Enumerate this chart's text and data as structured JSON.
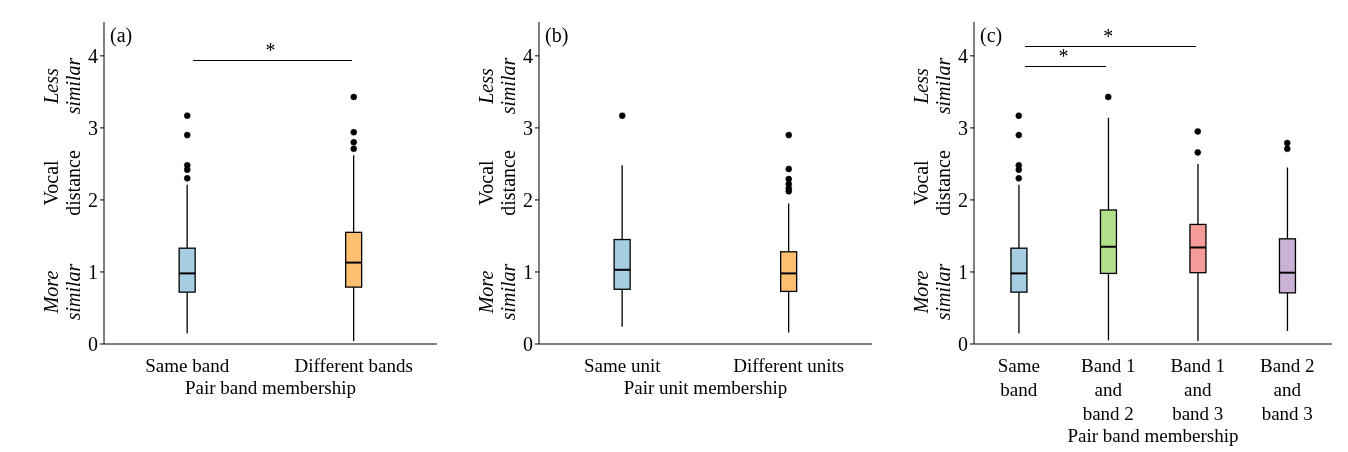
{
  "chart_data": [
    {
      "type": "box",
      "title": "(a)",
      "xlabel": "Pair band membership",
      "ylabel": "Vocal distance",
      "categories": [
        "Same band",
        "Different bands"
      ],
      "colors": [
        "#a6cee3",
        "#fdbf6f"
      ],
      "ylim": [
        0,
        4.47
      ],
      "yticks": [
        0,
        1,
        2,
        3,
        4
      ],
      "boxes": [
        {
          "low": 0.15,
          "q1": 0.72,
          "median": 0.98,
          "q3": 1.33,
          "high": 2.21,
          "outliers": [
            2.3,
            2.42,
            2.48,
            2.9,
            3.17
          ]
        },
        {
          "low": 0.04,
          "q1": 0.79,
          "median": 1.13,
          "q3": 1.55,
          "high": 2.62,
          "outliers": [
            2.71,
            2.8,
            2.94,
            3.43
          ]
        }
      ],
      "annotations": [
        "More similar",
        "Less similar",
        "*"
      ]
    },
    {
      "type": "box",
      "title": "(b)",
      "xlabel": "Pair unit membership",
      "ylabel": "Vocal distance",
      "categories": [
        "Same unit",
        "Different units"
      ],
      "colors": [
        "#a6cee3",
        "#fdbf6f"
      ],
      "ylim": [
        0,
        4.47
      ],
      "yticks": [
        0,
        1,
        2,
        3,
        4
      ],
      "boxes": [
        {
          "low": 0.24,
          "q1": 0.76,
          "median": 1.03,
          "q3": 1.45,
          "high": 2.48,
          "outliers": [
            3.17
          ]
        },
        {
          "low": 0.16,
          "q1": 0.73,
          "median": 0.98,
          "q3": 1.28,
          "high": 1.95,
          "outliers": [
            2.12,
            2.16,
            2.22,
            2.29,
            2.43,
            2.9
          ]
        }
      ],
      "annotations": [
        "More similar",
        "Less similar"
      ]
    },
    {
      "type": "box",
      "title": "(c)",
      "xlabel": "Pair band membership",
      "ylabel": "Vocal distance",
      "categories": [
        "Same band",
        "Band 1 and band 2",
        "Band 1 and band 3",
        "Band 2 and band 3"
      ],
      "colors": [
        "#a6cee3",
        "#b2df8a",
        "#f59b98",
        "#cab2d6"
      ],
      "ylim": [
        0,
        4.47
      ],
      "yticks": [
        0,
        1,
        2,
        3,
        4
      ],
      "boxes": [
        {
          "low": 0.15,
          "q1": 0.72,
          "median": 0.98,
          "q3": 1.33,
          "high": 2.21,
          "outliers": [
            2.3,
            2.42,
            2.48,
            2.9,
            3.17
          ]
        },
        {
          "low": 0.05,
          "q1": 0.98,
          "median": 1.35,
          "q3": 1.86,
          "high": 3.14,
          "outliers": [
            3.43
          ]
        },
        {
          "low": 0.04,
          "q1": 0.99,
          "median": 1.34,
          "q3": 1.66,
          "high": 2.5,
          "outliers": [
            2.66,
            2.95
          ]
        },
        {
          "low": 0.18,
          "q1": 0.71,
          "median": 0.99,
          "q3": 1.46,
          "high": 2.45,
          "outliers": [
            2.71,
            2.79
          ]
        }
      ],
      "annotations": [
        "More similar",
        "Less similar",
        "*",
        "*"
      ]
    }
  ]
}
